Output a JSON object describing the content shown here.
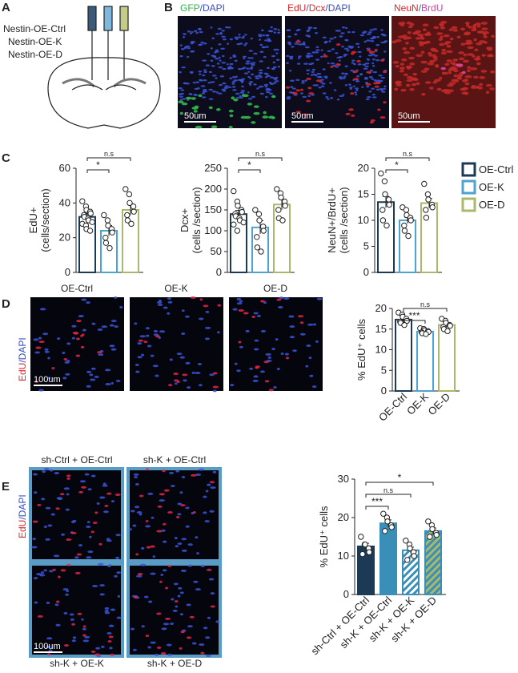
{
  "panel_labels": [
    "A",
    "B",
    "C",
    "D",
    "E"
  ],
  "panel_a": {
    "constructs": [
      "Nestin-OE-Ctrl",
      "Nestin-OE-K",
      "Nestin-OE-D"
    ]
  },
  "panel_b": {
    "images": [
      {
        "title": [
          {
            "text": "GFP",
            "color": "#2fb34a"
          },
          {
            "text": "/DAPI",
            "color": "#3a4fc4"
          }
        ],
        "scale": "50um"
      },
      {
        "title": [
          {
            "text": "EdU",
            "color": "#e0262a"
          },
          {
            "text": "/",
            "color": "#3a4fc4"
          },
          {
            "text": "Dcx",
            "color": "#e0262a"
          },
          {
            "text": "/DAPI",
            "color": "#3a4fc4"
          }
        ],
        "scale": "50um"
      },
      {
        "title": [
          {
            "text": "NeuN",
            "color": "#e0262a"
          },
          {
            "text": "/",
            "color": "#3a4fc4"
          },
          {
            "text": "BrdU",
            "color": "#d63aa6"
          }
        ],
        "scale": "50um"
      }
    ]
  },
  "panel_d": {
    "titles": [
      "OE-Ctrl",
      "OE-K",
      "OE-D"
    ],
    "stain": [
      {
        "text": "EdU",
        "color": "#e0262a"
      },
      {
        "text": "/DAPI",
        "color": "#3a4fc4"
      }
    ],
    "scale": "100um"
  },
  "panel_e": {
    "titles": [
      "sh-Ctrl + OE-Ctrl",
      "sh-K + OE-Ctrl",
      "sh-K + OE-K",
      "sh-K + OE-D"
    ],
    "stain": [
      {
        "text": "EdU",
        "color": "#e0262a"
      },
      {
        "text": "/DAPI",
        "color": "#3a4fc4"
      }
    ],
    "scale": "100um"
  },
  "legend": [
    {
      "name": "OE-Ctrl",
      "color": "#1c3a55"
    },
    {
      "name": "OE-K",
      "color": "#4aa3d0"
    },
    {
      "name": "OE-D",
      "color": "#a9b86a"
    }
  ],
  "chart_data": [
    {
      "type": "bar",
      "ylabel": [
        "EdU+",
        "(cells/section)"
      ],
      "categories": [
        null,
        null,
        null
      ],
      "values": [
        32,
        24,
        36
      ],
      "errors": [
        2,
        3,
        3
      ],
      "points": [
        [
          41,
          38,
          36,
          35,
          34,
          33,
          32,
          31,
          30,
          29,
          28,
          27,
          25,
          24
        ],
        [
          33,
          30,
          27,
          25,
          23,
          20,
          17,
          14
        ],
        [
          48,
          45,
          40,
          38,
          35,
          33,
          30,
          28
        ]
      ],
      "colors": [
        "#1c3a55",
        "#4aa3d0",
        "#a9b86a"
      ],
      "fills": [
        "#ffffff",
        "#ffffff",
        "#ffffff"
      ],
      "hatch": [
        null,
        null,
        null
      ],
      "ylim": [
        0,
        60
      ],
      "yticks": [
        0,
        20,
        40,
        60
      ],
      "significance": [
        {
          "from": 0,
          "to": 1,
          "label": "*"
        },
        {
          "from": 0,
          "to": 2,
          "label": "n.s"
        }
      ]
    },
    {
      "type": "bar",
      "ylabel": [
        "Dcx+",
        "(cells /section)"
      ],
      "categories": [
        null,
        null,
        null
      ],
      "values": [
        140,
        108,
        163
      ],
      "errors": [
        9,
        16,
        12
      ],
      "points": [
        [
          195,
          170,
          160,
          150,
          145,
          140,
          135,
          130,
          125,
          120,
          115,
          100
        ],
        [
          150,
          140,
          125,
          110,
          100,
          85,
          60,
          50
        ],
        [
          200,
          190,
          180,
          170,
          160,
          150,
          130,
          125
        ]
      ],
      "colors": [
        "#1c3a55",
        "#4aa3d0",
        "#a9b86a"
      ],
      "fills": [
        "#ffffff",
        "#ffffff",
        "#ffffff"
      ],
      "hatch": [
        null,
        null,
        null
      ],
      "ylim": [
        0,
        250
      ],
      "yticks": [
        0,
        50,
        100,
        150,
        200,
        250
      ],
      "significance": [
        {
          "from": 0,
          "to": 1,
          "label": "*"
        },
        {
          "from": 0,
          "to": 2,
          "label": "n.s"
        }
      ]
    },
    {
      "type": "bar",
      "ylabel": [
        "NeuN+/BrdU+",
        "(cells /section)"
      ],
      "categories": [
        null,
        null,
        null
      ],
      "values": [
        13.5,
        10,
        13.3
      ],
      "errors": [
        1.1,
        0.6,
        0.9
      ],
      "points": [
        [
          19,
          17.5,
          15,
          14,
          13,
          12,
          10,
          9
        ],
        [
          12.5,
          12,
          11,
          10.5,
          10,
          9,
          8,
          7
        ],
        [
          17,
          15,
          14,
          13,
          12.5,
          12,
          10.5
        ]
      ],
      "colors": [
        "#1c3a55",
        "#4aa3d0",
        "#a9b86a"
      ],
      "fills": [
        "#ffffff",
        "#ffffff",
        "#ffffff"
      ],
      "hatch": [
        null,
        null,
        null
      ],
      "ylim": [
        0,
        20
      ],
      "yticks": [
        0,
        5,
        10,
        15,
        20
      ],
      "significance": [
        {
          "from": 0,
          "to": 1,
          "label": "*"
        },
        {
          "from": 0,
          "to": 2,
          "label": "n.s"
        }
      ]
    },
    {
      "type": "bar",
      "ylabel": [
        "% EdU⁺ cells"
      ],
      "categories": [
        "OE-Ctrl",
        "OE-K",
        "OE-D"
      ],
      "values": [
        17.3,
        14.4,
        16
      ],
      "errors": [
        0.4,
        0.3,
        0.6
      ],
      "points": [
        [
          19,
          18.5,
          18,
          17.5,
          17,
          16.8,
          16.5,
          16
        ],
        [
          15.2,
          15,
          14.7,
          14.5,
          14.3,
          14.2,
          14,
          13.8
        ],
        [
          17.5,
          17,
          16.5,
          16,
          15.8,
          15.5,
          15,
          14.5
        ]
      ],
      "colors": [
        "#1c3a55",
        "#4aa3d0",
        "#a9b86a"
      ],
      "fills": [
        "#ffffff",
        "#ffffff",
        "#ffffff"
      ],
      "hatch": [
        null,
        null,
        null
      ],
      "ylim": [
        0,
        20
      ],
      "yticks": [
        0,
        5,
        10,
        15,
        20
      ],
      "significance": [
        {
          "from": 0,
          "to": 1,
          "label": "***"
        },
        {
          "from": 0,
          "to": 2,
          "label": "n.s"
        }
      ]
    },
    {
      "type": "bar",
      "ylabel": [
        "% EdU⁺ cells"
      ],
      "categories": [
        "sh-Ctrl + OE-Ctrl",
        "sh-K + OE-Ctrl",
        "sh-K + OE-K",
        "sh-K + OE-D"
      ],
      "values": [
        12.5,
        18.5,
        11.5,
        16.5
      ],
      "errors": [
        0.8,
        0.9,
        0.8,
        0.8
      ],
      "points": [
        [
          15,
          13,
          13,
          12,
          11,
          10.5
        ],
        [
          21,
          20,
          19,
          18,
          17.5,
          16.5
        ],
        [
          14,
          13,
          12,
          11,
          10,
          9
        ],
        [
          19,
          18,
          17,
          16,
          15.5,
          15
        ]
      ],
      "colors": [
        "#1c3a55",
        "#3a8fb8",
        "#3a8fb8",
        "#3a8fb8"
      ],
      "fills": [
        "#1c3a55",
        "#3a8fb8",
        "#ffffff",
        "#a9b86a"
      ],
      "hatch": [
        null,
        null,
        "#3a8fb8",
        "#3a8fb8"
      ],
      "ylim": [
        0,
        30
      ],
      "yticks": [
        0,
        10,
        20,
        30
      ],
      "significance": [
        {
          "from": 0,
          "to": 1,
          "label": "***"
        },
        {
          "from": 0,
          "to": 2,
          "label": "n.s"
        },
        {
          "from": 0,
          "to": 3,
          "label": "*"
        }
      ]
    }
  ]
}
